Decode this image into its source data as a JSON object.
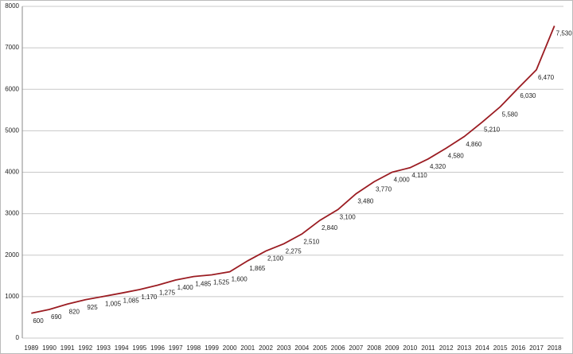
{
  "chart_data": {
    "type": "line",
    "categories": [
      "1989",
      "1990",
      "1991",
      "1992",
      "1993",
      "1994",
      "1995",
      "1996",
      "1997",
      "1998",
      "1999",
      "2000",
      "2001",
      "2002",
      "2003",
      "2004",
      "2005",
      "2006",
      "2007",
      "2008",
      "2009",
      "2010",
      "2011",
      "2012",
      "2013",
      "2014",
      "2015",
      "2016",
      "2017",
      "2018"
    ],
    "series": [
      {
        "color": "#9b1c22",
        "values": [
          600,
          690,
          820,
          925,
          1005,
          1085,
          1170,
          1275,
          1400,
          1485,
          1525,
          1600,
          1865,
          2100,
          2275,
          2510,
          2840,
          3100,
          3480,
          3770,
          4000,
          4110,
          4320,
          4580,
          4860,
          5210,
          5580,
          6030,
          6470,
          7530
        ],
        "value_labels": [
          "600",
          "690",
          "820",
          "925",
          "1,005",
          "1,085",
          "1,170",
          "1,275",
          "1,400",
          "1,485",
          "1,525",
          "1,600",
          "1,865",
          "2,100",
          "2,275",
          "2,510",
          "2,840",
          "3,100",
          "3,480",
          "3,770",
          "4,000",
          "4,110",
          "4,320",
          "4,580",
          "4,860",
          "5,210",
          "5,580",
          "6,030",
          "6,470",
          "7,530"
        ]
      }
    ],
    "ylim": [
      0,
      8000
    ],
    "yticks": [
      0,
      1000,
      2000,
      3000,
      4000,
      5000,
      6000,
      7000,
      8000
    ],
    "grid": true
  }
}
